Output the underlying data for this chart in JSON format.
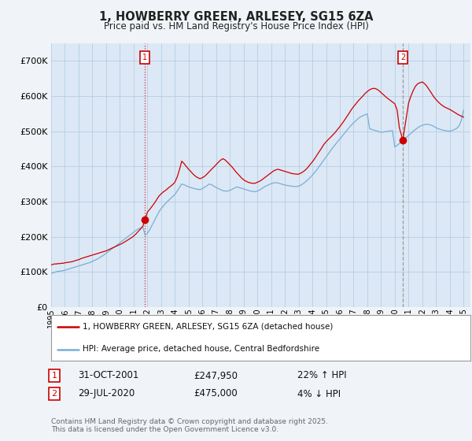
{
  "title_line1": "1, HOWBERRY GREEN, ARLESEY, SG15 6ZA",
  "title_line2": "Price paid vs. HM Land Registry's House Price Index (HPI)",
  "background_color": "#f0f4f8",
  "plot_background": "#dce8f5",
  "grid_color": "#b0c8e0",
  "red_line_color": "#cc0000",
  "blue_line_color": "#7aadd4",
  "ylim_min": 0,
  "ylim_max": 750000,
  "yticks": [
    0,
    100000,
    200000,
    300000,
    400000,
    500000,
    600000,
    700000
  ],
  "legend_red_label": "1, HOWBERRY GREEN, ARLESEY, SG15 6ZA (detached house)",
  "legend_blue_label": "HPI: Average price, detached house, Central Bedfordshire",
  "annotation1_date": "31-OCT-2001",
  "annotation1_price": "£247,950",
  "annotation1_hpi": "22% ↑ HPI",
  "annotation2_date": "29-JUL-2020",
  "annotation2_price": "£475,000",
  "annotation2_hpi": "4% ↓ HPI",
  "footnote": "Contains HM Land Registry data © Crown copyright and database right 2025.\nThis data is licensed under the Open Government Licence v3.0.",
  "marker1_x": 2001.83,
  "marker1_y": 247950,
  "marker2_x": 2020.58,
  "marker2_y": 475000,
  "xmin": 1995,
  "xmax": 2025.5,
  "red_x": [
    1995.0,
    1995.08,
    1995.17,
    1995.25,
    1995.33,
    1995.42,
    1995.5,
    1995.58,
    1995.67,
    1995.75,
    1995.83,
    1995.92,
    1996.0,
    1996.08,
    1996.17,
    1996.25,
    1996.33,
    1996.42,
    1996.5,
    1996.58,
    1996.67,
    1996.75,
    1996.83,
    1996.92,
    1997.0,
    1997.08,
    1997.17,
    1997.25,
    1997.33,
    1997.42,
    1997.5,
    1997.58,
    1997.67,
    1997.75,
    1997.83,
    1997.92,
    1998.0,
    1998.08,
    1998.17,
    1998.25,
    1998.33,
    1998.42,
    1998.5,
    1998.58,
    1998.67,
    1998.75,
    1998.83,
    1998.92,
    1999.0,
    1999.17,
    1999.33,
    1999.5,
    1999.67,
    1999.83,
    2000.0,
    2000.17,
    2000.33,
    2000.5,
    2000.67,
    2000.83,
    2001.0,
    2001.17,
    2001.33,
    2001.5,
    2001.67,
    2001.83,
    2002.0,
    2002.17,
    2002.33,
    2002.5,
    2002.67,
    2002.83,
    2003.0,
    2003.17,
    2003.33,
    2003.5,
    2003.67,
    2003.83,
    2004.0,
    2004.17,
    2004.33,
    2004.5,
    2004.67,
    2004.83,
    2005.0,
    2005.17,
    2005.33,
    2005.5,
    2005.67,
    2005.83,
    2006.0,
    2006.17,
    2006.33,
    2006.5,
    2006.67,
    2006.83,
    2007.0,
    2007.17,
    2007.33,
    2007.5,
    2007.67,
    2007.83,
    2008.0,
    2008.17,
    2008.33,
    2008.5,
    2008.67,
    2008.83,
    2009.0,
    2009.17,
    2009.33,
    2009.5,
    2009.67,
    2009.83,
    2010.0,
    2010.17,
    2010.33,
    2010.5,
    2010.67,
    2010.83,
    2011.0,
    2011.17,
    2011.33,
    2011.5,
    2011.67,
    2011.83,
    2012.0,
    2012.17,
    2012.33,
    2012.5,
    2012.67,
    2012.83,
    2013.0,
    2013.17,
    2013.33,
    2013.5,
    2013.67,
    2013.83,
    2014.0,
    2014.17,
    2014.33,
    2014.5,
    2014.67,
    2014.83,
    2015.0,
    2015.17,
    2015.33,
    2015.5,
    2015.67,
    2015.83,
    2016.0,
    2016.17,
    2016.33,
    2016.5,
    2016.67,
    2016.83,
    2017.0,
    2017.17,
    2017.33,
    2017.5,
    2017.67,
    2017.83,
    2018.0,
    2018.17,
    2018.33,
    2018.5,
    2018.67,
    2018.83,
    2019.0,
    2019.17,
    2019.33,
    2019.5,
    2019.67,
    2019.83,
    2020.0,
    2020.17,
    2020.33,
    2020.58,
    2021.0,
    2021.17,
    2021.33,
    2021.5,
    2021.67,
    2021.83,
    2022.0,
    2022.17,
    2022.33,
    2022.5,
    2022.67,
    2022.83,
    2023.0,
    2023.17,
    2023.33,
    2023.5,
    2023.67,
    2023.83,
    2024.0,
    2024.17,
    2024.33,
    2024.5,
    2024.67,
    2024.83,
    2025.0
  ],
  "red_y": [
    120000,
    121000,
    122000,
    123000,
    122500,
    123000,
    124000,
    123500,
    124000,
    125000,
    124500,
    125000,
    126000,
    126500,
    127000,
    127500,
    128000,
    128500,
    129000,
    130000,
    131000,
    132000,
    133000,
    134000,
    135000,
    136000,
    138000,
    139000,
    140000,
    141000,
    142000,
    143000,
    144000,
    145000,
    146000,
    147000,
    148000,
    149000,
    150000,
    151000,
    152000,
    153000,
    154000,
    155000,
    156000,
    157000,
    158000,
    159000,
    160000,
    163000,
    166000,
    169000,
    172000,
    175000,
    178000,
    181000,
    185000,
    189000,
    193000,
    197000,
    202000,
    208000,
    215000,
    222000,
    230000,
    247950,
    270000,
    278000,
    286000,
    295000,
    305000,
    315000,
    322000,
    328000,
    332000,
    338000,
    343000,
    348000,
    355000,
    370000,
    390000,
    415000,
    408000,
    400000,
    392000,
    385000,
    378000,
    372000,
    368000,
    365000,
    368000,
    372000,
    378000,
    385000,
    392000,
    398000,
    405000,
    412000,
    418000,
    422000,
    418000,
    412000,
    405000,
    398000,
    390000,
    382000,
    375000,
    368000,
    362000,
    358000,
    355000,
    353000,
    352000,
    352000,
    355000,
    358000,
    362000,
    367000,
    372000,
    377000,
    382000,
    387000,
    390000,
    392000,
    390000,
    388000,
    386000,
    384000,
    382000,
    380000,
    379000,
    378000,
    378000,
    381000,
    385000,
    390000,
    397000,
    405000,
    413000,
    422000,
    432000,
    442000,
    452000,
    462000,
    470000,
    477000,
    483000,
    490000,
    497000,
    505000,
    513000,
    522000,
    531000,
    541000,
    551000,
    561000,
    570000,
    578000,
    586000,
    593000,
    600000,
    607000,
    613000,
    618000,
    621000,
    622000,
    620000,
    616000,
    610000,
    604000,
    598000,
    593000,
    588000,
    583000,
    578000,
    560000,
    510000,
    475000,
    580000,
    600000,
    615000,
    628000,
    635000,
    638000,
    640000,
    635000,
    628000,
    618000,
    608000,
    598000,
    590000,
    583000,
    577000,
    572000,
    568000,
    565000,
    562000,
    558000,
    554000,
    550000,
    546000,
    543000,
    540000
  ],
  "blue_x": [
    1995.0,
    1995.08,
    1995.17,
    1995.25,
    1995.33,
    1995.42,
    1995.5,
    1995.58,
    1995.67,
    1995.75,
    1995.83,
    1995.92,
    1996.0,
    1996.08,
    1996.17,
    1996.25,
    1996.33,
    1996.42,
    1996.5,
    1996.58,
    1996.67,
    1996.75,
    1996.83,
    1996.92,
    1997.0,
    1997.17,
    1997.33,
    1997.5,
    1997.67,
    1997.83,
    1998.0,
    1998.17,
    1998.33,
    1998.5,
    1998.67,
    1998.83,
    1999.0,
    1999.17,
    1999.33,
    1999.5,
    1999.67,
    1999.83,
    2000.0,
    2000.17,
    2000.33,
    2000.5,
    2000.67,
    2000.83,
    2001.0,
    2001.17,
    2001.33,
    2001.5,
    2001.67,
    2001.83,
    2002.0,
    2002.17,
    2002.33,
    2002.5,
    2002.67,
    2002.83,
    2003.0,
    2003.17,
    2003.33,
    2003.5,
    2003.67,
    2003.83,
    2004.0,
    2004.17,
    2004.33,
    2004.5,
    2004.67,
    2004.83,
    2005.0,
    2005.17,
    2005.33,
    2005.5,
    2005.67,
    2005.83,
    2006.0,
    2006.17,
    2006.33,
    2006.5,
    2006.67,
    2006.83,
    2007.0,
    2007.17,
    2007.33,
    2007.5,
    2007.67,
    2007.83,
    2008.0,
    2008.17,
    2008.33,
    2008.5,
    2008.67,
    2008.83,
    2009.0,
    2009.17,
    2009.33,
    2009.5,
    2009.67,
    2009.83,
    2010.0,
    2010.17,
    2010.33,
    2010.5,
    2010.67,
    2010.83,
    2011.0,
    2011.17,
    2011.33,
    2011.5,
    2011.67,
    2011.83,
    2012.0,
    2012.17,
    2012.33,
    2012.5,
    2012.67,
    2012.83,
    2013.0,
    2013.17,
    2013.33,
    2013.5,
    2013.67,
    2013.83,
    2014.0,
    2014.17,
    2014.33,
    2014.5,
    2014.67,
    2014.83,
    2015.0,
    2015.17,
    2015.33,
    2015.5,
    2015.67,
    2015.83,
    2016.0,
    2016.17,
    2016.33,
    2016.5,
    2016.67,
    2016.83,
    2017.0,
    2017.17,
    2017.33,
    2017.5,
    2017.67,
    2017.83,
    2018.0,
    2018.17,
    2018.33,
    2018.5,
    2018.67,
    2018.83,
    2019.0,
    2019.17,
    2019.33,
    2019.5,
    2019.67,
    2019.83,
    2020.0,
    2020.17,
    2020.33,
    2020.5,
    2020.67,
    2020.83,
    2021.0,
    2021.17,
    2021.33,
    2021.5,
    2021.67,
    2021.83,
    2022.0,
    2022.17,
    2022.33,
    2022.5,
    2022.67,
    2022.83,
    2023.0,
    2023.17,
    2023.33,
    2023.5,
    2023.67,
    2023.83,
    2024.0,
    2024.17,
    2024.33,
    2024.5,
    2024.67,
    2024.83,
    2025.0
  ],
  "blue_y": [
    96000,
    97000,
    98000,
    99000,
    100000,
    101000,
    101500,
    102000,
    102500,
    103000,
    103500,
    104000,
    105000,
    106000,
    107000,
    108000,
    109000,
    110000,
    111000,
    112000,
    113000,
    114000,
    115000,
    116000,
    117000,
    119000,
    121000,
    123000,
    125000,
    127000,
    130000,
    133000,
    136000,
    140000,
    144000,
    148000,
    153000,
    158000,
    163000,
    168000,
    173000,
    178000,
    183000,
    188000,
    193000,
    198000,
    203000,
    208000,
    213000,
    218000,
    222000,
    225000,
    228000,
    205000,
    210000,
    220000,
    232000,
    245000,
    258000,
    270000,
    280000,
    288000,
    295000,
    302000,
    308000,
    314000,
    320000,
    330000,
    340000,
    350000,
    348000,
    345000,
    342000,
    340000,
    338000,
    336000,
    335000,
    334000,
    337000,
    341000,
    345000,
    350000,
    348000,
    344000,
    340000,
    337000,
    334000,
    331000,
    330000,
    330000,
    332000,
    335000,
    338000,
    342000,
    340000,
    338000,
    336000,
    334000,
    332000,
    330000,
    329000,
    328000,
    330000,
    333000,
    337000,
    342000,
    345000,
    348000,
    351000,
    353000,
    354000,
    353000,
    351000,
    349000,
    347000,
    346000,
    345000,
    344000,
    343000,
    343000,
    344000,
    347000,
    351000,
    356000,
    362000,
    368000,
    375000,
    383000,
    391000,
    400000,
    409000,
    418000,
    427000,
    436000,
    445000,
    454000,
    462000,
    470000,
    478000,
    486000,
    494000,
    502000,
    510000,
    517000,
    524000,
    530000,
    536000,
    541000,
    544000,
    547000,
    549000,
    507000,
    505000,
    503000,
    501000,
    499000,
    497000,
    498000,
    499000,
    500000,
    501000,
    502000,
    455000,
    460000,
    465000,
    470000,
    476000,
    482000,
    488000,
    494000,
    500000,
    505000,
    510000,
    514000,
    517000,
    519000,
    520000,
    519000,
    517000,
    514000,
    510000,
    507000,
    505000,
    503000,
    502000,
    501000,
    500000,
    502000,
    505000,
    508000,
    515000,
    530000,
    560000
  ]
}
